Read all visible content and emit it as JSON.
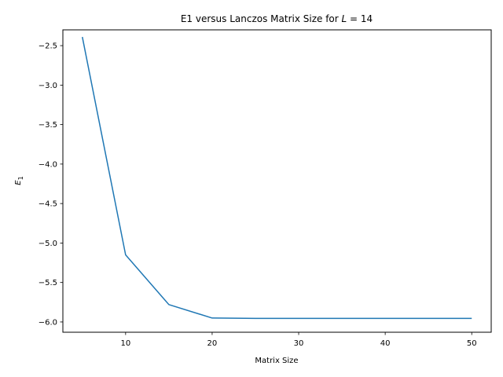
{
  "chart_data": {
    "type": "line",
    "title": {
      "prefix": "E1 versus Lanczos Matrix Size for ",
      "var": "L",
      "suffix": " = 14"
    },
    "xlabel": "Matrix Size",
    "ylabel": {
      "base": "E",
      "sub": "1"
    },
    "xlim": [
      2.75,
      52.25
    ],
    "ylim": [
      -6.13,
      -2.3
    ],
    "xticks": [
      10,
      20,
      30,
      40,
      50
    ],
    "xtick_labels": [
      "10",
      "20",
      "30",
      "40",
      "50"
    ],
    "yticks": [
      -2.5,
      -3.0,
      -3.5,
      -4.0,
      -4.5,
      -5.0,
      -5.5,
      -6.0
    ],
    "ytick_labels": [
      "−2.5",
      "−3.0",
      "−3.5",
      "−4.0",
      "−4.5",
      "−5.0",
      "−5.5",
      "−6.0"
    ],
    "grid": false,
    "series": [
      {
        "color": "#1f77b4",
        "x": [
          5,
          10,
          15,
          20,
          25,
          30,
          35,
          40,
          45,
          50
        ],
        "y": [
          -2.39,
          -5.15,
          -5.78,
          -5.95,
          -5.955,
          -5.955,
          -5.955,
          -5.955,
          -5.955,
          -5.955
        ]
      }
    ]
  }
}
